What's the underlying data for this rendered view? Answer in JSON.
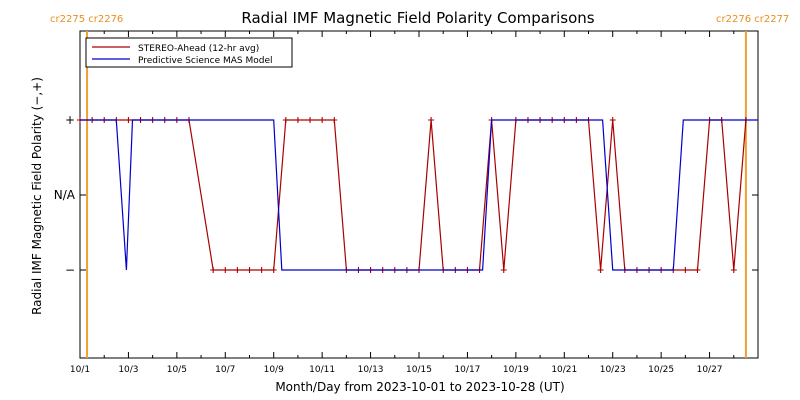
{
  "chart_data": {
    "type": "line",
    "title": "Radial IMF Magnetic Field Polarity Comparisons",
    "xlabel": "Month/Day from 2023-10-01 to 2023-10-28 (UT)",
    "ylabel": "Radial IMF Magnetic Field Polarity (−,+)",
    "x_range": [
      "2023-10-01",
      "2023-10-28"
    ],
    "x_tick_labels": [
      "10/1",
      "10/3",
      "10/5",
      "10/7",
      "10/9",
      "10/11",
      "10/13",
      "10/15",
      "10/17",
      "10/19",
      "10/21",
      "10/23",
      "10/25",
      "10/27"
    ],
    "x_tick_dates": [
      "2023-10-01",
      "2023-10-03",
      "2023-10-05",
      "2023-10-07",
      "2023-10-09",
      "2023-10-11",
      "2023-10-13",
      "2023-10-15",
      "2023-10-17",
      "2023-10-19",
      "2023-10-21",
      "2023-10-23",
      "2023-10-25",
      "2023-10-27"
    ],
    "y_categories": [
      "−",
      "N/A",
      "+"
    ],
    "y_tick_labels": [
      "+",
      "N/A",
      "−"
    ],
    "legend_position": "top-left",
    "grid": false,
    "rotation_markers": [
      {
        "date": "2023-10-01T07:00",
        "labels": [
          "cr2275",
          "cr2276"
        ],
        "side": "left"
      },
      {
        "date": "2023-10-28T12:00",
        "labels": [
          "cr2276",
          "cr2277"
        ],
        "side": "right"
      }
    ],
    "series": [
      {
        "name": "STEREO-Ahead (12-hr avg)",
        "color": "#aa0000",
        "markers": "plus",
        "points": [
          [
            "2023-10-01T00:00",
            "+"
          ],
          [
            "2023-10-01T12:00",
            "+"
          ],
          [
            "2023-10-02T00:00",
            "+"
          ],
          [
            "2023-10-02T12:00",
            "+"
          ],
          [
            "2023-10-03T00:00",
            "+"
          ],
          [
            "2023-10-03T12:00",
            "+"
          ],
          [
            "2023-10-04T00:00",
            "+"
          ],
          [
            "2023-10-04T12:00",
            "+"
          ],
          [
            "2023-10-05T00:00",
            "+"
          ],
          [
            "2023-10-05T12:00",
            "+"
          ],
          [
            "2023-10-06T12:00",
            "−"
          ],
          [
            "2023-10-07T00:00",
            "−"
          ],
          [
            "2023-10-07T12:00",
            "−"
          ],
          [
            "2023-10-08T00:00",
            "−"
          ],
          [
            "2023-10-08T12:00",
            "−"
          ],
          [
            "2023-10-09T00:00",
            "−"
          ],
          [
            "2023-10-09T12:00",
            "+"
          ],
          [
            "2023-10-10T00:00",
            "+"
          ],
          [
            "2023-10-10T12:00",
            "+"
          ],
          [
            "2023-10-11T00:00",
            "+"
          ],
          [
            "2023-10-11T12:00",
            "+"
          ],
          [
            "2023-10-12T00:00",
            "−"
          ],
          [
            "2023-10-12T12:00",
            "−"
          ],
          [
            "2023-10-13T00:00",
            "−"
          ],
          [
            "2023-10-13T12:00",
            "−"
          ],
          [
            "2023-10-14T00:00",
            "−"
          ],
          [
            "2023-10-14T12:00",
            "−"
          ],
          [
            "2023-10-15T00:00",
            "−"
          ],
          [
            "2023-10-15T12:00",
            "+"
          ],
          [
            "2023-10-16T00:00",
            "−"
          ],
          [
            "2023-10-16T12:00",
            "−"
          ],
          [
            "2023-10-17T00:00",
            "−"
          ],
          [
            "2023-10-17T12:00",
            "−"
          ],
          [
            "2023-10-18T00:00",
            "+"
          ],
          [
            "2023-10-18T12:00",
            "−"
          ],
          [
            "2023-10-19T00:00",
            "+"
          ],
          [
            "2023-10-19T12:00",
            "+"
          ],
          [
            "2023-10-20T00:00",
            "+"
          ],
          [
            "2023-10-20T12:00",
            "+"
          ],
          [
            "2023-10-21T00:00",
            "+"
          ],
          [
            "2023-10-21T12:00",
            "+"
          ],
          [
            "2023-10-22T00:00",
            "+"
          ],
          [
            "2023-10-22T12:00",
            "−"
          ],
          [
            "2023-10-23T00:00",
            "+"
          ],
          [
            "2023-10-23T12:00",
            "−"
          ],
          [
            "2023-10-24T00:00",
            "−"
          ],
          [
            "2023-10-24T12:00",
            "−"
          ],
          [
            "2023-10-25T00:00",
            "−"
          ],
          [
            "2023-10-25T12:00",
            "−"
          ],
          [
            "2023-10-26T00:00",
            "−"
          ],
          [
            "2023-10-26T12:00",
            "−"
          ],
          [
            "2023-10-27T00:00",
            "+"
          ],
          [
            "2023-10-27T12:00",
            "+"
          ],
          [
            "2023-10-28T00:00",
            "−"
          ],
          [
            "2023-10-28T12:00",
            "+"
          ]
        ]
      },
      {
        "name": "Predictive Science MAS Model",
        "color": "#0000cc",
        "markers": "none",
        "points": [
          [
            "2023-10-01T00:00",
            "+"
          ],
          [
            "2023-10-02T12:00",
            "+"
          ],
          [
            "2023-10-02T22:00",
            "−"
          ],
          [
            "2023-10-03T04:00",
            "+"
          ],
          [
            "2023-10-09T00:00",
            "+"
          ],
          [
            "2023-10-09T08:00",
            "−"
          ],
          [
            "2023-10-17T15:00",
            "−"
          ],
          [
            "2023-10-18T00:00",
            "+"
          ],
          [
            "2023-10-22T14:00",
            "+"
          ],
          [
            "2023-10-23T00:00",
            "−"
          ],
          [
            "2023-10-25T12:00",
            "−"
          ],
          [
            "2023-10-25T22:00",
            "+"
          ],
          [
            "2023-10-29T00:00",
            "+"
          ]
        ]
      }
    ]
  }
}
